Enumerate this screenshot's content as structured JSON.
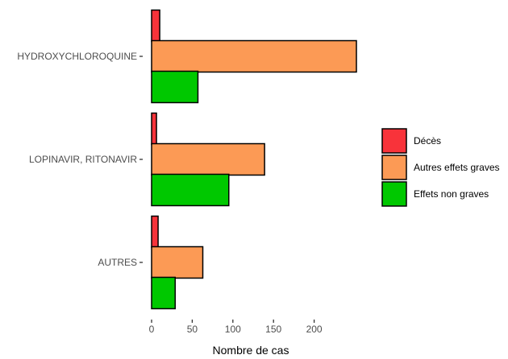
{
  "chart_data": {
    "type": "bar",
    "orientation": "horizontal",
    "categories": [
      "HYDROXYCHLOROQUINE",
      "LOPINAVIR, RITONAVIR",
      "AUTRES"
    ],
    "series": [
      {
        "name": "Décès",
        "color": "#f8333a",
        "values": [
          10,
          6,
          8
        ]
      },
      {
        "name": "Autres effets graves",
        "color": "#fc9a55",
        "values": [
          252,
          139,
          63
        ]
      },
      {
        "name": "Effets non graves",
        "color": "#00c800",
        "values": [
          57,
          95,
          29
        ]
      }
    ],
    "xlabel": "Nombre de cas",
    "ylabel": "",
    "xlim": [
      0,
      250
    ],
    "xticks": [
      0,
      50,
      100,
      150,
      200
    ],
    "grid": false,
    "legend_position": "right"
  }
}
